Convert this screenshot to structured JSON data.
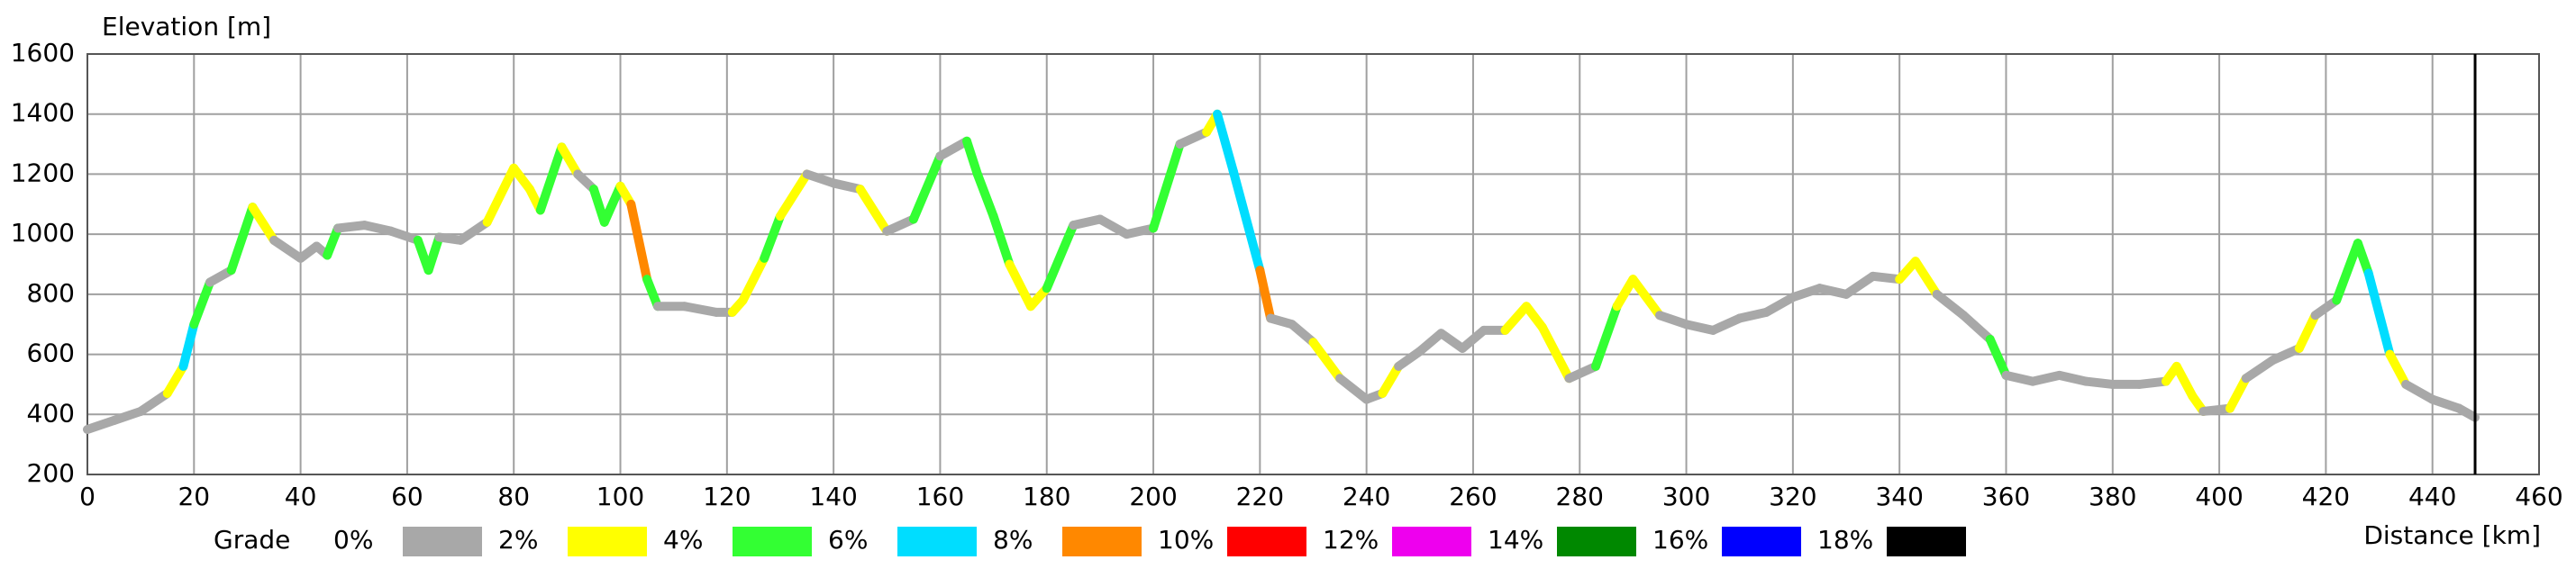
{
  "chart_data": {
    "type": "line",
    "y_label": "Elevation [m]",
    "x_label": "Distance [km]",
    "xlim": [
      0,
      460
    ],
    "xticks": [
      0,
      20,
      40,
      60,
      80,
      100,
      120,
      140,
      160,
      180,
      200,
      220,
      240,
      260,
      280,
      300,
      320,
      340,
      360,
      380,
      400,
      420,
      440,
      460
    ],
    "ylim": [
      200,
      1600
    ],
    "yticks": [
      200,
      400,
      600,
      800,
      1000,
      1200,
      1400,
      1600
    ],
    "grid": true,
    "marker_x": 448,
    "series": [
      {
        "name": "Elevation",
        "x": [
          0,
          5,
          10,
          15,
          18,
          20,
          23,
          27,
          31,
          35,
          40,
          43,
          45,
          47,
          52,
          57,
          62,
          64,
          66,
          70,
          75,
          80,
          83,
          85,
          89,
          92,
          95,
          97,
          100,
          102,
          105,
          107,
          112,
          118,
          121,
          123,
          127,
          130,
          135,
          140,
          145,
          150,
          155,
          160,
          165,
          167,
          170,
          173,
          177,
          180,
          185,
          190,
          195,
          200,
          205,
          210,
          212,
          215,
          220,
          222,
          226,
          230,
          235,
          240,
          243,
          246,
          250,
          254,
          258,
          262,
          266,
          270,
          273,
          278,
          283,
          287,
          290,
          295,
          300,
          305,
          310,
          315,
          320,
          325,
          330,
          335,
          340,
          343,
          347,
          352,
          357,
          360,
          365,
          370,
          375,
          380,
          385,
          390,
          392,
          395,
          397,
          402,
          405,
          410,
          415,
          418,
          422,
          426,
          428,
          432,
          435,
          440,
          445,
          448
        ],
        "values": [
          350,
          380,
          410,
          470,
          560,
          700,
          840,
          880,
          1090,
          980,
          920,
          960,
          930,
          1020,
          1030,
          1010,
          980,
          880,
          990,
          980,
          1040,
          1220,
          1150,
          1080,
          1290,
          1200,
          1150,
          1040,
          1160,
          1100,
          850,
          760,
          760,
          740,
          740,
          780,
          920,
          1060,
          1200,
          1170,
          1150,
          1010,
          1050,
          1260,
          1310,
          1200,
          1060,
          900,
          760,
          820,
          1030,
          1050,
          1000,
          1020,
          1300,
          1340,
          1400,
          1210,
          880,
          720,
          700,
          640,
          520,
          450,
          470,
          560,
          610,
          670,
          620,
          680,
          680,
          760,
          690,
          520,
          560,
          760,
          850,
          730,
          700,
          680,
          720,
          740,
          790,
          820,
          800,
          860,
          850,
          910,
          800,
          730,
          650,
          530,
          510,
          530,
          510,
          500,
          500,
          510,
          560,
          460,
          410,
          420,
          520,
          580,
          620,
          730,
          780,
          970,
          870,
          600,
          500,
          450,
          420,
          390
        ]
      }
    ],
    "grade_legend": {
      "title": "Grade",
      "ticks": [
        {
          "value": 0,
          "label": "0%"
        },
        {
          "value": 2,
          "label": "2%"
        },
        {
          "value": 4,
          "label": "4%"
        },
        {
          "value": 6,
          "label": "6%"
        },
        {
          "value": 8,
          "label": "8%"
        },
        {
          "value": 10,
          "label": "10%"
        },
        {
          "value": 12,
          "label": "12%"
        },
        {
          "value": 14,
          "label": "14%"
        },
        {
          "value": 16,
          "label": "16%"
        },
        {
          "value": 18,
          "label": "18%"
        }
      ],
      "colors": [
        "#a8a8a8",
        "#ffff00",
        "#33ff33",
        "#00ddff",
        "#ff8800",
        "#ff0000",
        "#ee00ee",
        "#008800",
        "#0000ff",
        "#000000"
      ]
    }
  }
}
